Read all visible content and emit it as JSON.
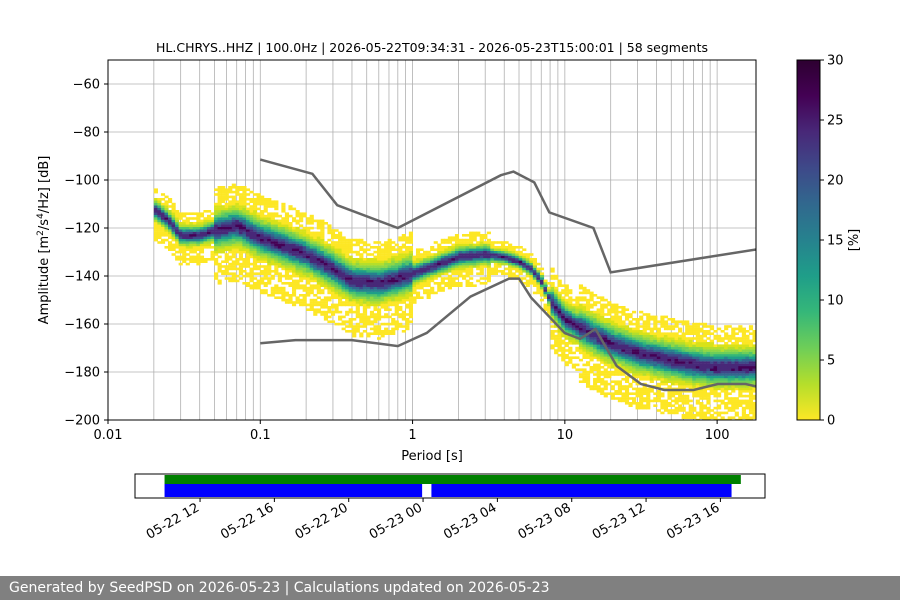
{
  "chart_data": {
    "type": "heatmap",
    "title": "HL.CHRYS..HHZ | 100.0Hz | 2026-05-22T09:34:31 - 2026-05-23T15:00:01 | 58 segments",
    "xlabel": "Period [s]",
    "ylabel_parts": [
      "Amplitude [m",
      "2",
      "/s",
      "4",
      "/Hz] [dB]"
    ],
    "x_scale": "log",
    "xlim": [
      0.01,
      180
    ],
    "ylim": [
      -200,
      -50
    ],
    "x_ticks": [
      {
        "value": 0.01,
        "label": "0.01"
      },
      {
        "value": 0.1,
        "label": "0.1"
      },
      {
        "value": 1,
        "label": "1"
      },
      {
        "value": 10,
        "label": "10"
      },
      {
        "value": 100,
        "label": "100"
      }
    ],
    "y_ticks": [
      {
        "value": -60,
        "label": "−60"
      },
      {
        "value": -80,
        "label": "−80"
      },
      {
        "value": -100,
        "label": "−100"
      },
      {
        "value": -120,
        "label": "−120"
      },
      {
        "value": -140,
        "label": "−140"
      },
      {
        "value": -160,
        "label": "−160"
      },
      {
        "value": -180,
        "label": "−180"
      },
      {
        "value": -200,
        "label": "−200"
      }
    ],
    "grid": true,
    "colormap": "viridis_r",
    "colorbar": {
      "label": "[%]",
      "range": [
        0,
        30
      ],
      "ticks": [
        {
          "value": 0,
          "label": "0"
        },
        {
          "value": 5,
          "label": "5"
        },
        {
          "value": 10,
          "label": "10"
        },
        {
          "value": 15,
          "label": "15"
        },
        {
          "value": 20,
          "label": "20"
        },
        {
          "value": 25,
          "label": "25"
        },
        {
          "value": 30,
          "label": "30"
        }
      ]
    },
    "mode_line": {
      "x": [
        0.02,
        0.025,
        0.03,
        0.04,
        0.05,
        0.07,
        0.1,
        0.15,
        0.2,
        0.3,
        0.4,
        0.6,
        0.8,
        1.0,
        1.5,
        2.0,
        3.0,
        4.0,
        5.0,
        6.0,
        7.0,
        8.0,
        10,
        15,
        20,
        30,
        50,
        70,
        100,
        150,
        180
      ],
      "y": [
        -112,
        -117,
        -123,
        -123,
        -121,
        -119,
        -124,
        -128,
        -131,
        -137,
        -142,
        -143,
        -141,
        -139,
        -135,
        -132,
        -131,
        -132,
        -134,
        -137,
        -142,
        -150,
        -158,
        -164,
        -168,
        -172,
        -175,
        -177,
        -178,
        -178,
        -178
      ]
    },
    "noise_models": [
      {
        "name": "high",
        "x": [
          0.1,
          0.22,
          0.32,
          0.8,
          3.8,
          4.6,
          6.3,
          7.9,
          15.4,
          20,
          354.8
        ],
        "y": [
          -91.5,
          -97.4,
          -110.5,
          -120.0,
          -98.0,
          -96.5,
          -101.0,
          -113.5,
          -120.0,
          -138.5,
          -126.0
        ]
      },
      {
        "name": "low",
        "x": [
          0.1,
          0.17,
          0.4,
          0.8,
          1.24,
          2.4,
          4.3,
          5.0,
          6.0,
          10.0,
          12.6,
          15.9,
          21.9,
          31.6,
          45.0,
          70.0,
          101.0,
          154.0,
          180
        ],
        "y": [
          -168.0,
          -166.7,
          -166.7,
          -169.2,
          -163.7,
          -148.6,
          -141.1,
          -141.1,
          -149.0,
          -163.8,
          -166.2,
          -162.1,
          -177.5,
          -185.0,
          -187.5,
          -187.5,
          -185.0,
          -185.0,
          -186.0
        ]
      }
    ],
    "timeline": {
      "tick_labels": [
        "05-22 12",
        "05-22 16",
        "05-22 20",
        "05-23 00",
        "05-23 04",
        "05-23 08",
        "05-23 12",
        "05-23 16"
      ],
      "tick_hours": [
        0,
        4,
        8,
        12,
        16,
        20,
        24,
        28
      ],
      "range_hours": [
        -3.5,
        30.4
      ],
      "data_span_hours": [
        -1.91,
        29.1
      ],
      "psd_segments_hours": [
        [
          -1.91,
          11.95
        ],
        [
          12.45,
          28.6
        ]
      ]
    }
  },
  "colors": {
    "noise_model": "#666666",
    "grid": "#b0b0b0",
    "data_bar": "#008000",
    "psd_bar": "#0000ff",
    "footer_bg": "#808080",
    "footer_text": "#ffffff"
  },
  "footer": {
    "text": "Generated by SeedPSD on 2026-05-23 | Calculations updated on 2026-05-23"
  }
}
